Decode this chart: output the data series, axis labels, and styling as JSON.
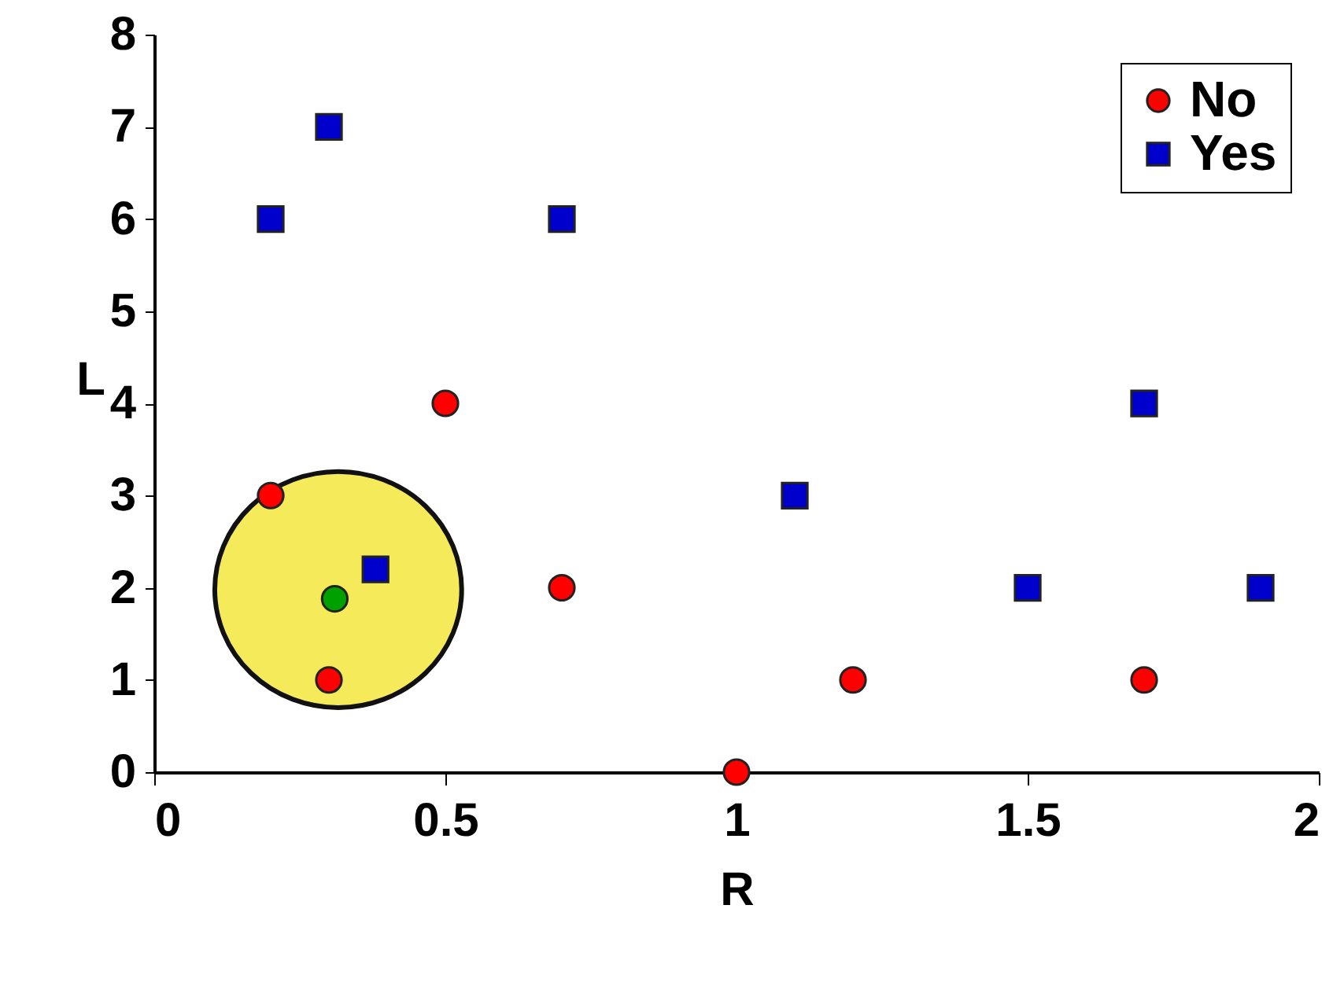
{
  "chart_data": {
    "type": "scatter",
    "xlabel": "R",
    "ylabel": "L",
    "xlim": [
      0,
      2
    ],
    "ylim": [
      0,
      8
    ],
    "xticks": [
      {
        "value": 0,
        "label": "0"
      },
      0.5,
      {
        "value": 1,
        "label": "1"
      },
      1.5,
      {
        "value": 2,
        "label": "2"
      }
    ],
    "yticks": [
      {
        "value": 0,
        "label": "0"
      },
      {
        "value": 1,
        "label": "1"
      },
      {
        "value": 2,
        "label": "2"
      },
      {
        "value": 3,
        "label": "3"
      },
      {
        "value": 4,
        "label": "4"
      },
      {
        "value": 5,
        "label": "5"
      },
      {
        "value": 6,
        "label": "6"
      },
      {
        "value": 7,
        "label": "7"
      },
      {
        "value": 8,
        "label": "8"
      }
    ],
    "grid": false,
    "legend": "top right",
    "series": [
      {
        "name": "No",
        "color": "#ff0000",
        "marker": "circle",
        "x": [
          0.2,
          0.5,
          0.7,
          0.3,
          1,
          1.2,
          1.7
        ],
        "values": [
          3,
          4,
          2,
          1,
          0,
          1,
          1
        ]
      },
      {
        "name": "Yes",
        "color": "#0000cc",
        "marker": "square",
        "x": [
          0.2,
          0.3,
          0.7,
          1.1,
          1.7,
          1.5,
          1.9,
          0.38
        ],
        "values": [
          6,
          7,
          6,
          3,
          4,
          2,
          2,
          2.2
        ]
      },
      {
        "color": "#00a000",
        "marker": "circle",
        "x": [
          0.31
        ],
        "values": [
          1.88
        ]
      }
    ]
  }
}
